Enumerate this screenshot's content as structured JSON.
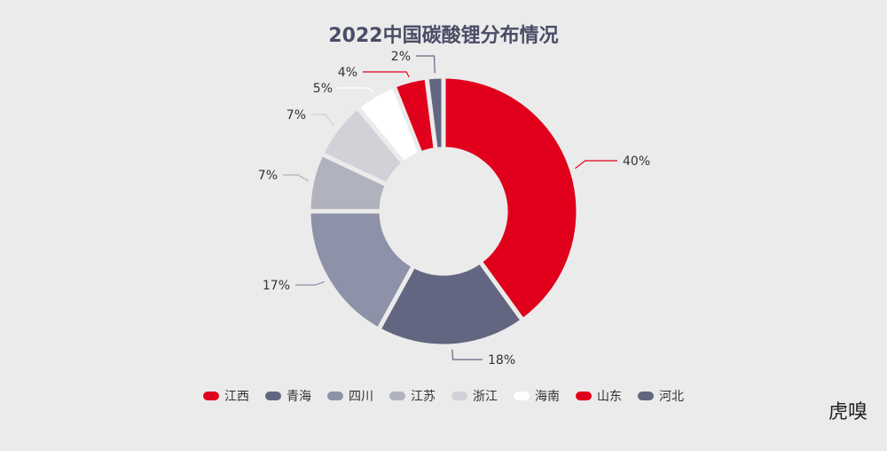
{
  "chart_data": {
    "type": "pie",
    "donut": true,
    "title": "2022中国碳酸锂分布情况",
    "categories": [
      "江西",
      "青海",
      "四川",
      "江苏",
      "浙江",
      "海南",
      "山东",
      "河北"
    ],
    "values": [
      40,
      18,
      17,
      7,
      7,
      5,
      4,
      2
    ],
    "labels": [
      "40%",
      "18%",
      "17%",
      "7%",
      "7%",
      "5%",
      "4%",
      "2%"
    ],
    "colors": [
      "#e0001b",
      "#626680",
      "#8e92a8",
      "#b0b2be",
      "#d0d2d8",
      "#ffffff",
      "#e0001b",
      "#626680"
    ],
    "legend_placement": "bottom",
    "start": "top, clockwise"
  },
  "logo": "虎嗅"
}
